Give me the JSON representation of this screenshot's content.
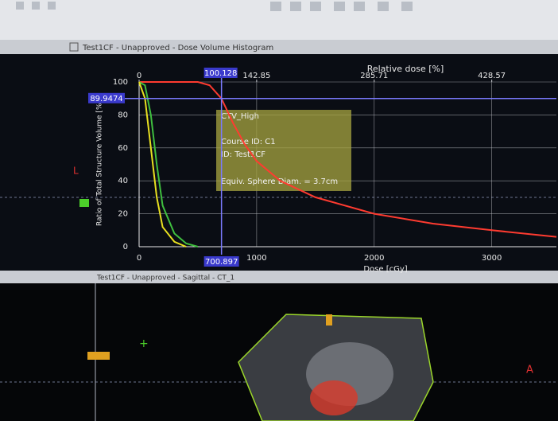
{
  "windows": {
    "dvh_title": "Test1CF - Unapproved - Dose Volume Histogram",
    "sagittal_title": "Test1CF - Unapproved - Sagittal - CT_1",
    "left_marker": "L",
    "right_marker": "A"
  },
  "chart_data": {
    "type": "line",
    "xlabel": "Dose [cGy]",
    "ylabel": "Ratio of Total Structure Volume [%]",
    "x2label": "Relative dose [%]",
    "xlim": [
      0,
      3550
    ],
    "xticks": [
      0,
      1000,
      2000,
      3000
    ],
    "x2lim": [
      0,
      507.14
    ],
    "x2ticks": [
      0,
      142.85,
      285.71,
      428.57
    ],
    "ylim": [
      0,
      100
    ],
    "yticks": [
      0,
      20,
      40,
      60,
      80,
      100
    ],
    "grid": true,
    "series": [
      {
        "name": "CTV_High",
        "color": "#ff3b30",
        "x": [
          0,
          500,
          600,
          700,
          800,
          900,
          1000,
          1200,
          1500,
          2000,
          2500,
          3000,
          3550
        ],
        "values": [
          100,
          100,
          98,
          90,
          75,
          62,
          52,
          40,
          30,
          20,
          14,
          10,
          6
        ]
      },
      {
        "color": "#3fbf3f",
        "x": [
          0,
          50,
          100,
          150,
          200,
          300,
          400,
          500
        ],
        "values": [
          100,
          98,
          80,
          50,
          25,
          8,
          2,
          0
        ]
      },
      {
        "color": "#e8e020",
        "x": [
          0,
          50,
          100,
          150,
          200,
          300,
          400
        ],
        "values": [
          100,
          90,
          60,
          30,
          12,
          3,
          0
        ]
      }
    ],
    "cursor": {
      "dose": 700.897,
      "relative_dose": 100.128,
      "volume": 89.9474
    },
    "annotations": [
      "CTV_High",
      "Course ID: C1",
      "ID: Test1CF",
      "Equiv. Sphere Diam. = 3.7cm"
    ]
  }
}
